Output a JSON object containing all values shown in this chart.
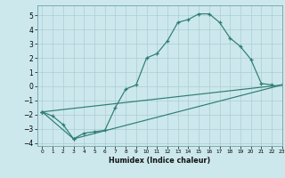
{
  "title": "",
  "xlabel": "Humidex (Indice chaleur)",
  "ylabel": "",
  "bg_color": "#cce8ec",
  "grid_color": "#aacdd4",
  "line_color": "#2e7d72",
  "xlim": [
    -0.5,
    23
  ],
  "ylim": [
    -4.2,
    5.7
  ],
  "yticks": [
    -4,
    -3,
    -2,
    -1,
    0,
    1,
    2,
    3,
    4,
    5
  ],
  "xticks": [
    0,
    1,
    2,
    3,
    4,
    5,
    6,
    7,
    8,
    9,
    10,
    11,
    12,
    13,
    14,
    15,
    16,
    17,
    18,
    19,
    20,
    21,
    22,
    23
  ],
  "series1_x": [
    0,
    1,
    2,
    3,
    4,
    5,
    6,
    7,
    8,
    9,
    10,
    11,
    12,
    13,
    14,
    15,
    16,
    17,
    18,
    19,
    20,
    21,
    22
  ],
  "series1_y": [
    -1.8,
    -2.1,
    -2.7,
    -3.7,
    -3.3,
    -3.2,
    -3.1,
    -1.5,
    -0.2,
    0.1,
    2.0,
    2.3,
    3.2,
    4.5,
    4.7,
    5.1,
    5.1,
    4.5,
    3.4,
    2.8,
    1.9,
    0.2,
    0.1
  ],
  "series2_x": [
    0,
    23
  ],
  "series2_y": [
    -1.8,
    0.1
  ],
  "series3_x": [
    0,
    3,
    23
  ],
  "series3_y": [
    -1.8,
    -3.7,
    0.1
  ]
}
